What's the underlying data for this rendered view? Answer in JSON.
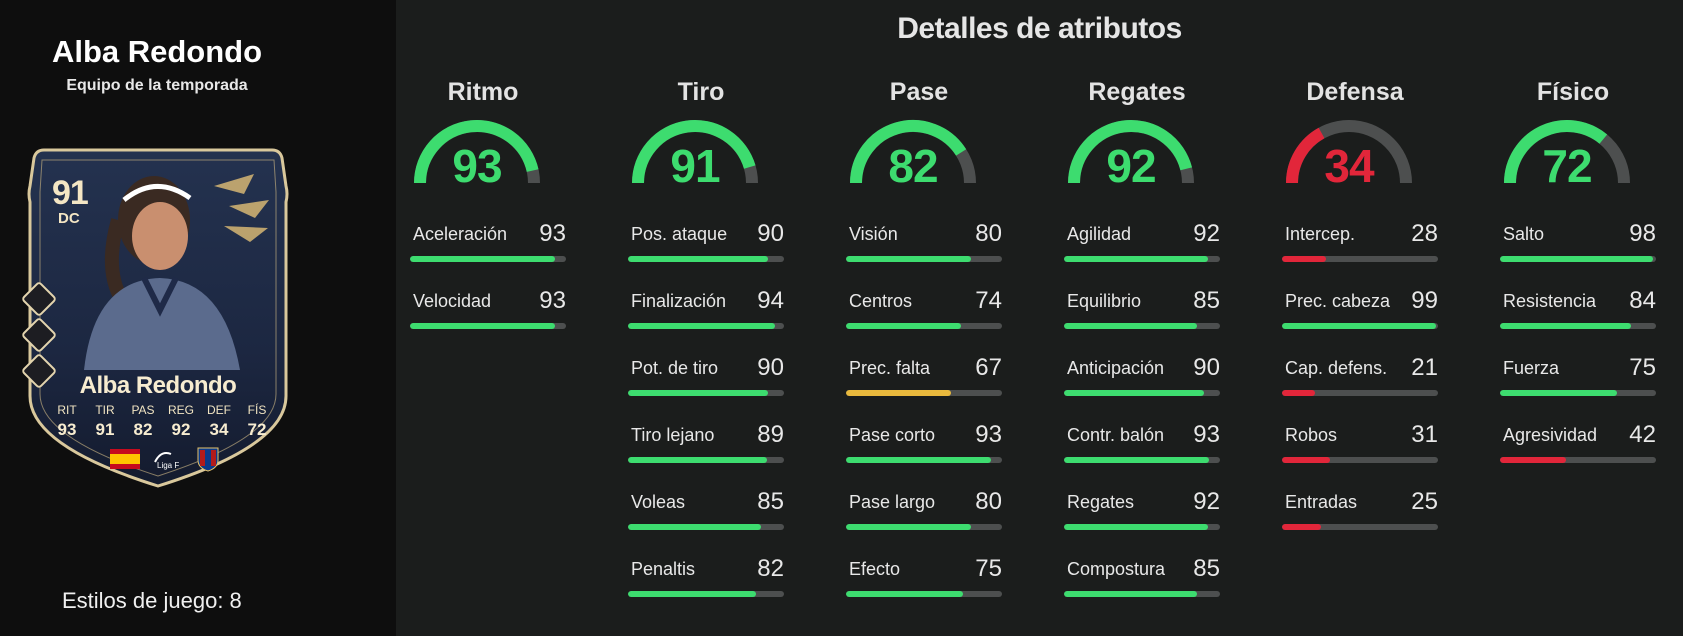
{
  "player": {
    "name": "Alba Redondo",
    "team_label": "Equipo de la temporada",
    "playstyles_label": "Estilos de juego:",
    "playstyles_count": "8"
  },
  "card": {
    "rating": "91",
    "position": "DC",
    "name": "Alba Redondo",
    "stats": [
      {
        "label": "RIT",
        "value": "93"
      },
      {
        "label": "TIR",
        "value": "91"
      },
      {
        "label": "PAS",
        "value": "82"
      },
      {
        "label": "REG",
        "value": "92"
      },
      {
        "label": "DEF",
        "value": "34"
      },
      {
        "label": "FÍS",
        "value": "72"
      }
    ],
    "badges": [
      "spain-flag-icon",
      "liga-f-logo",
      "levante-crest-icon"
    ],
    "badge_text_liga": "Liga F"
  },
  "title": "Detalles de atributos",
  "colors": {
    "green": "#3ddc6f",
    "yellow": "#e9b93d",
    "red": "#e2263a",
    "track": "#4d4f4f"
  },
  "categories": [
    {
      "title": "Ritmo",
      "value": "93",
      "level": 0.93,
      "color": "#3ddc6f",
      "stats": [
        {
          "label": "Aceleración",
          "value": "93",
          "color": "#3ddc6f"
        },
        {
          "label": "Velocidad",
          "value": "93",
          "color": "#3ddc6f"
        }
      ]
    },
    {
      "title": "Tiro",
      "value": "91",
      "level": 0.91,
      "color": "#3ddc6f",
      "stats": [
        {
          "label": "Pos. ataque",
          "value": "90",
          "color": "#3ddc6f"
        },
        {
          "label": "Finalización",
          "value": "94",
          "color": "#3ddc6f"
        },
        {
          "label": "Pot. de tiro",
          "value": "90",
          "color": "#3ddc6f"
        },
        {
          "label": "Tiro lejano",
          "value": "89",
          "color": "#3ddc6f"
        },
        {
          "label": "Voleas",
          "value": "85",
          "color": "#3ddc6f"
        },
        {
          "label": "Penaltis",
          "value": "82",
          "color": "#3ddc6f"
        }
      ]
    },
    {
      "title": "Pase",
      "value": "82",
      "level": 0.82,
      "color": "#3ddc6f",
      "stats": [
        {
          "label": "Visión",
          "value": "80",
          "color": "#3ddc6f"
        },
        {
          "label": "Centros",
          "value": "74",
          "color": "#3ddc6f"
        },
        {
          "label": "Prec. falta",
          "value": "67",
          "color": "#e9b93d"
        },
        {
          "label": "Pase corto",
          "value": "93",
          "color": "#3ddc6f"
        },
        {
          "label": "Pase largo",
          "value": "80",
          "color": "#3ddc6f"
        },
        {
          "label": "Efecto",
          "value": "75",
          "color": "#3ddc6f"
        }
      ]
    },
    {
      "title": "Regates",
      "value": "92",
      "level": 0.92,
      "color": "#3ddc6f",
      "stats": [
        {
          "label": "Agilidad",
          "value": "92",
          "color": "#3ddc6f"
        },
        {
          "label": "Equilibrio",
          "value": "85",
          "color": "#3ddc6f"
        },
        {
          "label": "Anticipación",
          "value": "90",
          "color": "#3ddc6f"
        },
        {
          "label": "Contr. balón",
          "value": "93",
          "color": "#3ddc6f"
        },
        {
          "label": "Regates",
          "value": "92",
          "color": "#3ddc6f"
        },
        {
          "label": "Compostura",
          "value": "85",
          "color": "#3ddc6f"
        }
      ]
    },
    {
      "title": "Defensa",
      "value": "34",
      "level": 0.34,
      "color": "#e2263a",
      "stats": [
        {
          "label": "Intercep.",
          "value": "28",
          "color": "#e2263a"
        },
        {
          "label": "Prec. cabeza",
          "value": "99",
          "color": "#3ddc6f"
        },
        {
          "label": "Cap. defens.",
          "value": "21",
          "color": "#e2263a"
        },
        {
          "label": "Robos",
          "value": "31",
          "color": "#e2263a"
        },
        {
          "label": "Entradas",
          "value": "25",
          "color": "#e2263a"
        }
      ]
    },
    {
      "title": "Físico",
      "value": "72",
      "level": 0.72,
      "color": "#3ddc6f",
      "stats": [
        {
          "label": "Salto",
          "value": "98",
          "color": "#3ddc6f"
        },
        {
          "label": "Resistencia",
          "value": "84",
          "color": "#3ddc6f"
        },
        {
          "label": "Fuerza",
          "value": "75",
          "color": "#3ddc6f"
        },
        {
          "label": "Agresividad",
          "value": "42",
          "color": "#e2263a"
        }
      ]
    }
  ]
}
